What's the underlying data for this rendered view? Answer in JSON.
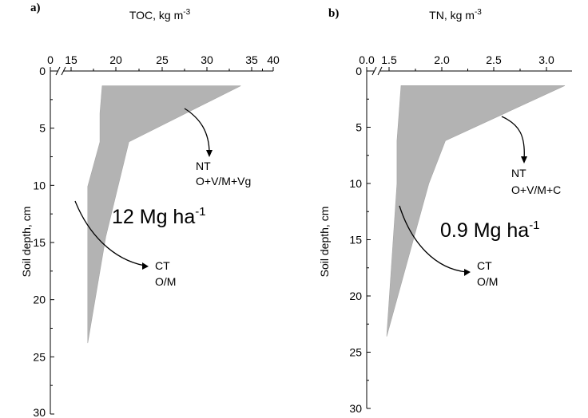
{
  "chart_data": [
    {
      "panel_label": "a)",
      "type": "area",
      "xlabel": "TOC, kg m",
      "xlabel_sup": "-3",
      "ylabel": "Soil depth, cm",
      "x_ticks": [
        "0",
        "15",
        "20",
        "25",
        "30",
        "35",
        "40"
      ],
      "y_ticks": [
        "0",
        "5",
        "10",
        "15",
        "20",
        "25",
        "30"
      ],
      "xlim": [
        12,
        40
      ],
      "x_axis_break": true,
      "ylim": [
        0,
        30
      ],
      "y_inverted": true,
      "x_axis_position": "top",
      "series": [
        {
          "label": "NT",
          "label_detail": "O+V/M+Vg",
          "role": "upper bound",
          "points": [
            [
              35.5,
              1.3
            ],
            [
              20.0,
              6.2
            ],
            [
              16.8,
              14.5
            ],
            [
              14.3,
              23.8
            ]
          ]
        },
        {
          "label": "CT",
          "label_detail": "O/M",
          "role": "lower bound",
          "points": [
            [
              16.3,
              1.3
            ],
            [
              16.0,
              3.7
            ],
            [
              16.0,
              6.2
            ],
            [
              14.3,
              10.1
            ],
            [
              14.3,
              23.8
            ]
          ]
        }
      ],
      "annotation": {
        "text": "12 Mg ha",
        "sup": "-1"
      },
      "grid": false
    },
    {
      "panel_label": "b)",
      "type": "area",
      "xlabel": "TN, kg m",
      "xlabel_sup": "-3",
      "ylabel": "Soil depth, cm",
      "x_ticks": [
        "0.0",
        "1.5",
        "2.0",
        "2.5",
        "3.0"
      ],
      "y_ticks": [
        "0",
        "5",
        "10",
        "15",
        "20",
        "25",
        "30"
      ],
      "xlim": [
        1.2,
        3.0
      ],
      "x_axis_break": true,
      "ylim": [
        0,
        30
      ],
      "y_inverted": true,
      "x_axis_position": "top",
      "series": [
        {
          "label": "NT",
          "label_detail": "O+V/M+C",
          "role": "upper bound",
          "points": [
            [
              2.93,
              1.3
            ],
            [
              1.77,
              6.2
            ],
            [
              1.61,
              10.0
            ],
            [
              1.2,
              23.6
            ]
          ]
        },
        {
          "label": "CT",
          "label_detail": "O/M",
          "role": "lower bound",
          "points": [
            [
              1.34,
              1.3
            ],
            [
              1.32,
              3.7
            ],
            [
              1.3,
              6.2
            ],
            [
              1.3,
              10.0
            ],
            [
              1.2,
              23.6
            ]
          ]
        }
      ],
      "annotation": {
        "text": "0.9 Mg ha",
        "sup": "-1"
      },
      "grid": false
    }
  ]
}
